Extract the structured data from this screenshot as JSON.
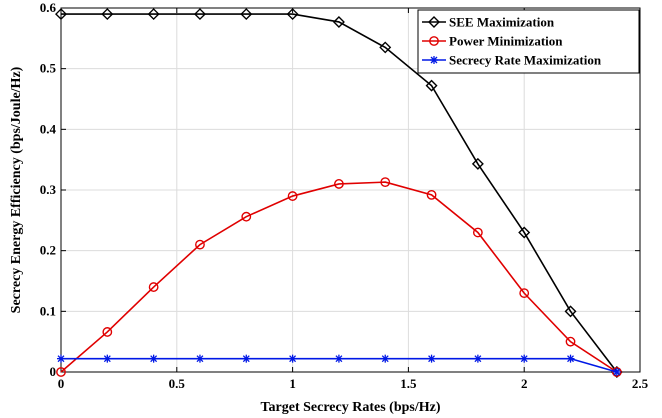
{
  "chart_data": {
    "type": "line",
    "xlabel": "Target Secrecy Rates (bps/Hz)",
    "ylabel": "Secrecy Energy Efficiency (bps/Joule/Hz)",
    "xlim": [
      0,
      2.5
    ],
    "ylim": [
      0,
      0.6
    ],
    "xticks": [
      0,
      0.5,
      1,
      1.5,
      2,
      2.5
    ],
    "xtick_labels": [
      "0",
      "0.5",
      "1",
      "1.5",
      "2",
      "2.5"
    ],
    "yticks": [
      0,
      0.1,
      0.2,
      0.3,
      0.4,
      0.5,
      0.6
    ],
    "ytick_labels": [
      "0",
      "0.1",
      "0.2",
      "0.3",
      "0.4",
      "0.5",
      "0.6"
    ],
    "grid": true,
    "legend_position": "top-right",
    "series": [
      {
        "name": "SEE Maximization",
        "color": "#000000",
        "marker": "diamond",
        "x": [
          0,
          0.2,
          0.4,
          0.6,
          0.8,
          1.0,
          1.2,
          1.4,
          1.6,
          1.8,
          2.0,
          2.2,
          2.4
        ],
        "y": [
          0.59,
          0.59,
          0.59,
          0.59,
          0.59,
          0.59,
          0.577,
          0.535,
          0.472,
          0.343,
          0.23,
          0.1,
          0.0
        ]
      },
      {
        "name": "Power Minimization",
        "color": "#e00000",
        "marker": "circle",
        "x": [
          0,
          0.2,
          0.4,
          0.6,
          0.8,
          1.0,
          1.2,
          1.4,
          1.6,
          1.8,
          2.0,
          2.2,
          2.4
        ],
        "y": [
          0.0,
          0.066,
          0.14,
          0.21,
          0.256,
          0.29,
          0.31,
          0.313,
          0.292,
          0.23,
          0.13,
          0.05,
          0.0
        ]
      },
      {
        "name": "Secrecy Rate Maximization",
        "color": "#0018e6",
        "marker": "star",
        "x": [
          0,
          0.2,
          0.4,
          0.6,
          0.8,
          1.0,
          1.2,
          1.4,
          1.6,
          1.8,
          2.0,
          2.2,
          2.4
        ],
        "y": [
          0.022,
          0.022,
          0.022,
          0.022,
          0.022,
          0.022,
          0.022,
          0.022,
          0.022,
          0.022,
          0.022,
          0.022,
          0.0
        ]
      }
    ]
  }
}
